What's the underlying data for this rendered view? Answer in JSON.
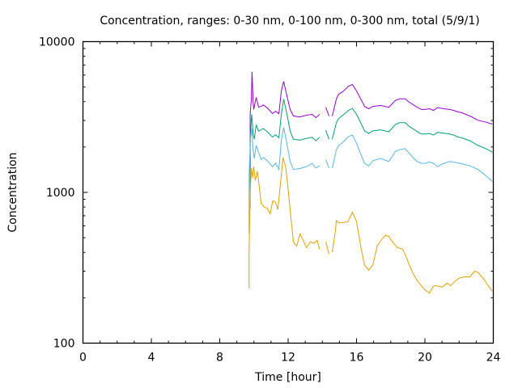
{
  "chart_data": {
    "type": "line",
    "title": "Concentration, ranges: 0-30 nm, 0-100 nm, 0-300 nm, total (5/9/1)",
    "xlabel": "Time [hour]",
    "ylabel": "Concentration",
    "xlim": [
      0,
      24
    ],
    "ylim": [
      100,
      10000
    ],
    "yscale": "log",
    "x_ticks": [
      0,
      4,
      8,
      12,
      16,
      20,
      24
    ],
    "x_tick_labels": [
      "0",
      "4",
      "8",
      "12",
      "16",
      "20",
      "24"
    ],
    "y_ticks": [
      100,
      1000,
      10000
    ],
    "y_tick_labels": [
      "100",
      "1000",
      "10000"
    ],
    "grid": false,
    "legend": "none",
    "series": [
      {
        "name": "total",
        "color": "#9400d3",
        "segments": [
          [
            [
              9.78,
              1450
            ],
            [
              9.78,
              3300
            ],
            [
              9.85,
              4200
            ],
            [
              9.89,
              6300
            ],
            [
              9.95,
              4000
            ],
            [
              9.99,
              3550
            ],
            [
              10.13,
              4260
            ],
            [
              10.27,
              3680
            ],
            [
              10.42,
              3720
            ],
            [
              10.55,
              3800
            ],
            [
              10.79,
              3630
            ],
            [
              11.08,
              3340
            ],
            [
              11.27,
              3450
            ],
            [
              11.46,
              3330
            ],
            [
              11.6,
              4700
            ],
            [
              11.74,
              5450
            ],
            [
              11.93,
              4370
            ],
            [
              12.12,
              3550
            ],
            [
              12.31,
              3210
            ],
            [
              12.69,
              3170
            ],
            [
              13.07,
              3250
            ],
            [
              13.4,
              3290
            ],
            [
              13.63,
              3130
            ],
            [
              13.84,
              3300
            ]
          ],
          [
            [
              14.2,
              3670
            ],
            [
              14.39,
              3210
            ]
          ],
          [
            [
              14.58,
              3210
            ],
            [
              14.82,
              4170
            ],
            [
              14.96,
              4490
            ],
            [
              15.2,
              4660
            ],
            [
              15.53,
              5070
            ],
            [
              15.76,
              5200
            ],
            [
              16.0,
              4710
            ],
            [
              16.24,
              4170
            ],
            [
              16.47,
              3720
            ],
            [
              16.71,
              3590
            ],
            [
              16.95,
              3720
            ],
            [
              17.42,
              3770
            ],
            [
              17.89,
              3670
            ],
            [
              18.27,
              4070
            ],
            [
              18.51,
              4170
            ],
            [
              18.84,
              4170
            ],
            [
              19.08,
              3960
            ],
            [
              19.31,
              3820
            ],
            [
              19.55,
              3670
            ],
            [
              19.79,
              3550
            ],
            [
              20.02,
              3550
            ],
            [
              20.26,
              3590
            ],
            [
              20.5,
              3500
            ],
            [
              20.73,
              3650
            ],
            [
              21.11,
              3590
            ],
            [
              21.44,
              3550
            ],
            [
              21.68,
              3500
            ],
            [
              21.92,
              3420
            ],
            [
              22.15,
              3380
            ],
            [
              22.63,
              3210
            ],
            [
              23.1,
              3010
            ],
            [
              23.57,
              2920
            ],
            [
              23.95,
              2840
            ]
          ]
        ]
      },
      {
        "name": "0-300 nm",
        "color": "#009e73",
        "segments": [
          [
            [
              9.78,
              780
            ],
            [
              9.78,
              2300
            ],
            [
              9.87,
              3300
            ],
            [
              9.95,
              2450
            ],
            [
              10.02,
              2250
            ],
            [
              10.13,
              2800
            ],
            [
              10.27,
              2550
            ],
            [
              10.42,
              2600
            ],
            [
              10.55,
              2650
            ],
            [
              10.79,
              2520
            ],
            [
              11.08,
              2330
            ],
            [
              11.27,
              2410
            ],
            [
              11.46,
              2300
            ],
            [
              11.6,
              3300
            ],
            [
              11.74,
              4150
            ],
            [
              11.93,
              3300
            ],
            [
              12.12,
              2550
            ],
            [
              12.31,
              2250
            ],
            [
              12.69,
              2220
            ],
            [
              13.07,
              2280
            ],
            [
              13.4,
              2320
            ],
            [
              13.63,
              2200
            ],
            [
              13.84,
              2320
            ]
          ],
          [
            [
              14.2,
              2580
            ],
            [
              14.39,
              2250
            ]
          ],
          [
            [
              14.58,
              2250
            ],
            [
              14.82,
              2900
            ],
            [
              14.96,
              3100
            ],
            [
              15.2,
              3250
            ],
            [
              15.53,
              3500
            ],
            [
              15.76,
              3600
            ],
            [
              16.0,
              3300
            ],
            [
              16.24,
              2900
            ],
            [
              16.47,
              2560
            ],
            [
              16.71,
              2460
            ],
            [
              16.95,
              2560
            ],
            [
              17.42,
              2600
            ],
            [
              17.89,
              2520
            ],
            [
              18.27,
              2820
            ],
            [
              18.51,
              2900
            ],
            [
              18.84,
              2900
            ],
            [
              19.08,
              2740
            ],
            [
              19.31,
              2640
            ],
            [
              19.55,
              2530
            ],
            [
              19.79,
              2440
            ],
            [
              20.02,
              2440
            ],
            [
              20.26,
              2460
            ],
            [
              20.5,
              2400
            ],
            [
              20.73,
              2500
            ],
            [
              21.11,
              2470
            ],
            [
              21.44,
              2440
            ],
            [
              21.68,
              2400
            ],
            [
              21.92,
              2330
            ],
            [
              22.15,
              2300
            ],
            [
              22.63,
              2200
            ],
            [
              23.1,
              2050
            ],
            [
              23.57,
              1950
            ],
            [
              23.95,
              1850
            ]
          ]
        ]
      },
      {
        "name": "0-100 nm",
        "color": "#56b4e9",
        "segments": [
          [
            [
              9.72,
              530
            ],
            [
              9.72,
              1300
            ],
            [
              9.8,
              2300
            ],
            [
              9.87,
              2650
            ],
            [
              9.95,
              1900
            ],
            [
              10.02,
              1680
            ],
            [
              10.13,
              2050
            ],
            [
              10.27,
              1850
            ],
            [
              10.42,
              1650
            ],
            [
              10.55,
              1700
            ],
            [
              10.79,
              1620
            ],
            [
              11.08,
              1480
            ],
            [
              11.27,
              1560
            ],
            [
              11.46,
              1420
            ],
            [
              11.6,
              2200
            ],
            [
              11.74,
              2700
            ],
            [
              11.93,
              2100
            ],
            [
              12.12,
              1600
            ],
            [
              12.31,
              1420
            ],
            [
              12.69,
              1440
            ],
            [
              13.07,
              1480
            ],
            [
              13.4,
              1560
            ],
            [
              13.63,
              1450
            ],
            [
              13.84,
              1500
            ]
          ],
          [
            [
              14.2,
              1650
            ],
            [
              14.39,
              1450
            ]
          ],
          [
            [
              14.58,
              1450
            ],
            [
              14.82,
              1920
            ],
            [
              14.96,
              2050
            ],
            [
              15.2,
              2150
            ],
            [
              15.53,
              2350
            ],
            [
              15.76,
              2400
            ],
            [
              16.0,
              2120
            ],
            [
              16.24,
              1800
            ],
            [
              16.47,
              1560
            ],
            [
              16.71,
              1500
            ],
            [
              16.95,
              1620
            ],
            [
              17.42,
              1680
            ],
            [
              17.89,
              1600
            ],
            [
              18.27,
              1870
            ],
            [
              18.51,
              1920
            ],
            [
              18.84,
              1950
            ],
            [
              19.08,
              1820
            ],
            [
              19.31,
              1700
            ],
            [
              19.55,
              1600
            ],
            [
              19.79,
              1560
            ],
            [
              20.02,
              1560
            ],
            [
              20.26,
              1590
            ],
            [
              20.5,
              1560
            ],
            [
              20.73,
              1480
            ],
            [
              21.11,
              1560
            ],
            [
              21.44,
              1600
            ],
            [
              21.68,
              1590
            ],
            [
              21.92,
              1570
            ],
            [
              22.15,
              1550
            ],
            [
              22.63,
              1500
            ],
            [
              23.1,
              1420
            ],
            [
              23.57,
              1290
            ],
            [
              23.95,
              1180
            ]
          ]
        ]
      },
      {
        "name": "0-30 nm",
        "color": "#e69f00",
        "segments": [
          [
            [
              9.72,
              230
            ],
            [
              9.72,
              420
            ],
            [
              9.78,
              1000
            ],
            [
              9.85,
              1450
            ],
            [
              9.92,
              1250
            ],
            [
              9.99,
              1480
            ],
            [
              10.08,
              1200
            ],
            [
              10.2,
              1380
            ],
            [
              10.3,
              1120
            ],
            [
              10.42,
              850
            ],
            [
              10.6,
              800
            ],
            [
              10.79,
              780
            ],
            [
              10.95,
              720
            ],
            [
              11.1,
              880
            ],
            [
              11.25,
              860
            ],
            [
              11.4,
              770
            ],
            [
              11.55,
              1150
            ],
            [
              11.7,
              1700
            ],
            [
              11.85,
              1500
            ],
            [
              12.0,
              1050
            ],
            [
              12.15,
              700
            ],
            [
              12.31,
              470
            ],
            [
              12.5,
              440
            ],
            [
              12.69,
              530
            ],
            [
              12.85,
              490
            ],
            [
              13.07,
              430
            ],
            [
              13.3,
              470
            ],
            [
              13.5,
              460
            ],
            [
              13.7,
              480
            ],
            [
              13.84,
              420
            ]
          ],
          [
            [
              14.2,
              470
            ],
            [
              14.39,
              390
            ]
          ],
          [
            [
              14.58,
              400
            ],
            [
              14.75,
              540
            ],
            [
              14.82,
              650
            ],
            [
              14.96,
              630
            ],
            [
              15.2,
              630
            ],
            [
              15.5,
              640
            ],
            [
              15.76,
              740
            ],
            [
              16.0,
              640
            ],
            [
              16.24,
              440
            ],
            [
              16.47,
              330
            ],
            [
              16.71,
              305
            ],
            [
              16.95,
              330
            ],
            [
              17.2,
              440
            ],
            [
              17.42,
              480
            ],
            [
              17.7,
              520
            ],
            [
              17.89,
              510
            ],
            [
              18.1,
              470
            ],
            [
              18.4,
              430
            ],
            [
              18.7,
              420
            ],
            [
              18.84,
              390
            ],
            [
              19.08,
              330
            ],
            [
              19.31,
              290
            ],
            [
              19.55,
              260
            ],
            [
              19.79,
              240
            ],
            [
              20.02,
              225
            ],
            [
              20.26,
              215
            ],
            [
              20.5,
              240
            ],
            [
              20.73,
              240
            ],
            [
              21.0,
              235
            ],
            [
              21.3,
              250
            ],
            [
              21.5,
              240
            ],
            [
              21.8,
              260
            ],
            [
              22.0,
              270
            ],
            [
              22.3,
              275
            ],
            [
              22.63,
              275
            ],
            [
              22.9,
              300
            ],
            [
              23.1,
              295
            ],
            [
              23.4,
              270
            ],
            [
              23.7,
              240
            ],
            [
              23.95,
              220
            ]
          ]
        ]
      }
    ]
  }
}
